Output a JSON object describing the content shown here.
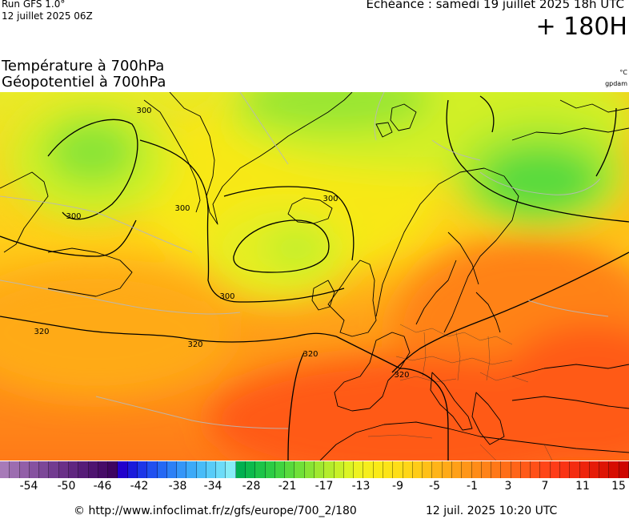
{
  "header": {
    "run_model": "Run GFS 1.0°",
    "run_date": "12 juillet 2025 06Z",
    "valid_time": "Echéance : samedi 19 juillet 2025 18h UTC",
    "lead_time": "+ 180H"
  },
  "titles": {
    "line1": "Température à 700hPa",
    "line2": "Géopotentiel à 700hPa"
  },
  "units": {
    "temperature": "°C",
    "geopotential": "gpdam"
  },
  "contour_labels": [
    "300",
    "300",
    "300",
    "300",
    "300",
    "320",
    "320",
    "320",
    "320"
  ],
  "colorbar": {
    "colors": [
      "#a77bb8",
      "#9c6db0",
      "#925fa8",
      "#8652a0",
      "#7c4798",
      "#723b90",
      "#6a3088",
      "#602680",
      "#561c78",
      "#4e1470",
      "#460b68",
      "#3e0360",
      "#2200cc",
      "#1a1adb",
      "#1c36e8",
      "#2050f0",
      "#2468f4",
      "#2c80f6",
      "#3496f8",
      "#3caaf8",
      "#48bcf8",
      "#58ccf8",
      "#6cdcf8",
      "#86ecf6",
      "#00b050",
      "#0cba4c",
      "#1cc448",
      "#2ccc44",
      "#40d440",
      "#58da3c",
      "#70e038",
      "#88e434",
      "#a0e830",
      "#b4ec2c",
      "#c8f028",
      "#dcf424",
      "#eef220",
      "#f6ee1c",
      "#faea18",
      "#fce418",
      "#fede18",
      "#ffd618",
      "#ffcc18",
      "#ffc018",
      "#ffb418",
      "#ffaa18",
      "#ffa018",
      "#ff9618",
      "#ff8c18",
      "#ff8218",
      "#ff7818",
      "#ff6e18",
      "#ff6418",
      "#ff5a18",
      "#ff5018",
      "#ff4618",
      "#ff3c18",
      "#fa3414",
      "#f42c10",
      "#ee240c",
      "#e61c08",
      "#de1404",
      "#d60c00",
      "#ce0600"
    ],
    "tick_labels": [
      "-54",
      "-50",
      "-46",
      "-42",
      "-38",
      "-34",
      "-28",
      "-21",
      "-17",
      "-13",
      "-9",
      "-5",
      "-1",
      "3",
      "7",
      "11",
      "15"
    ]
  },
  "footer": {
    "url": "© http://www.infoclimat.fr/z/gfs/europe/700_2/180",
    "generated": "12 juil. 2025 10:20 UTC"
  }
}
